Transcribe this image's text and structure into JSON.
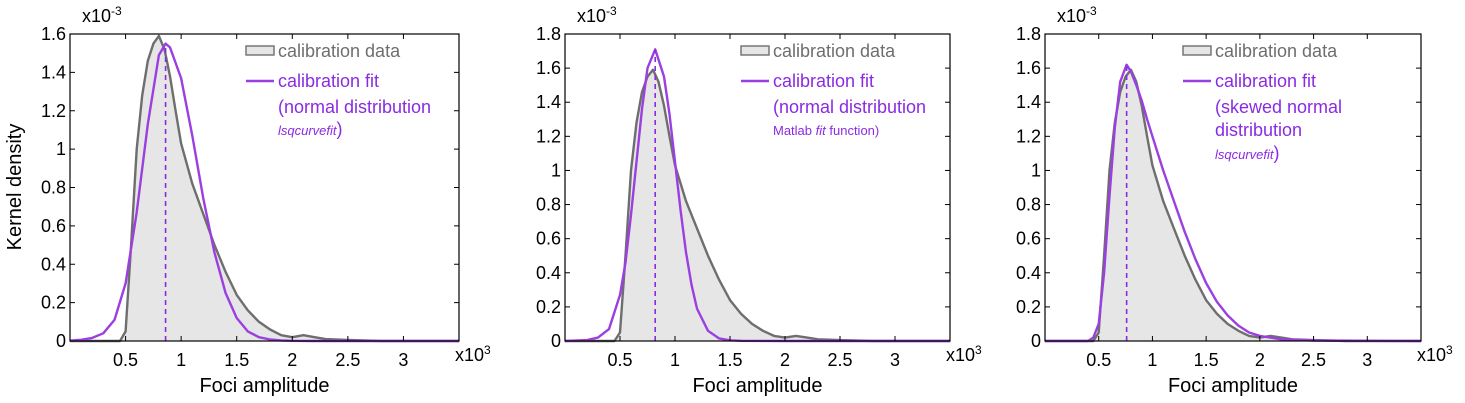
{
  "figure": {
    "ylabel": "Kernel density",
    "xlabel": "Foci amplitude",
    "y_exponent": "x10",
    "y_exponent_power": "-3",
    "x_exponent": "x10",
    "x_exponent_power": "3"
  },
  "colors": {
    "data_line": "#6e6e6e",
    "data_fill": "#e6e6e6",
    "fit_line": "#9b3fe0",
    "mode_line": "#8a2be2",
    "legend_fit_text": "#8a2be2",
    "legend_data_text": "#6e6e6e"
  },
  "chart_data": [
    {
      "type": "area",
      "panel": "a",
      "xlabel": "Foci amplitude",
      "ylabel": "Kernel density",
      "xlim": [
        0,
        3.5
      ],
      "ylim": [
        0,
        1.6
      ],
      "xticks": [
        0.5,
        1,
        1.5,
        2,
        2.5,
        3
      ],
      "xtick_labels": [
        "0.5",
        "1",
        "1.5",
        "2",
        "2.5",
        "3"
      ],
      "yticks": [
        0,
        0.2,
        0.4,
        0.6,
        0.8,
        1,
        1.2,
        1.4,
        1.6
      ],
      "ytick_labels": [
        "0",
        "0.2",
        "0.4",
        "0.6",
        "0.8",
        "1",
        "1.2",
        "1.4",
        "1.6"
      ],
      "mode_line_x": 0.86,
      "legend": [
        "calibration data",
        "calibration fit",
        "(normal distribution",
        "lsqcurvefit",
        ")"
      ],
      "series": [
        {
          "name": "calibration data",
          "x": [
            0,
            0.45,
            0.5,
            0.55,
            0.6,
            0.65,
            0.7,
            0.75,
            0.8,
            0.85,
            0.9,
            0.95,
            1.0,
            1.1,
            1.2,
            1.3,
            1.4,
            1.5,
            1.6,
            1.7,
            1.8,
            1.9,
            2.0,
            2.1,
            2.2,
            2.3,
            2.5,
            2.8,
            3.5
          ],
          "values": [
            0,
            0.0,
            0.05,
            0.5,
            1.0,
            1.28,
            1.46,
            1.55,
            1.59,
            1.52,
            1.38,
            1.2,
            1.03,
            0.82,
            0.66,
            0.5,
            0.36,
            0.24,
            0.16,
            0.1,
            0.06,
            0.03,
            0.02,
            0.03,
            0.02,
            0.01,
            0.005,
            0.0,
            0.0
          ]
        },
        {
          "name": "calibration fit",
          "x": [
            0,
            0.1,
            0.2,
            0.3,
            0.4,
            0.5,
            0.6,
            0.7,
            0.8,
            0.86,
            0.9,
            1.0,
            1.1,
            1.2,
            1.3,
            1.4,
            1.5,
            1.6,
            1.7,
            1.8,
            1.9,
            2.0,
            2.2,
            2.5,
            3.5
          ],
          "values": [
            0.002,
            0.006,
            0.016,
            0.04,
            0.11,
            0.3,
            0.67,
            1.13,
            1.49,
            1.55,
            1.53,
            1.37,
            1.07,
            0.74,
            0.46,
            0.25,
            0.12,
            0.05,
            0.02,
            0.008,
            0.003,
            0.001,
            0.0,
            0.0,
            0.0
          ]
        }
      ]
    },
    {
      "type": "area",
      "panel": "b",
      "xlabel": "Foci amplitude",
      "ylabel": "",
      "xlim": [
        0,
        3.5
      ],
      "ylim": [
        0,
        1.8
      ],
      "xticks": [
        0.5,
        1,
        1.5,
        2,
        2.5,
        3
      ],
      "xtick_labels": [
        "0.5",
        "1",
        "1.5",
        "2",
        "2.5",
        "3"
      ],
      "yticks": [
        0,
        0.2,
        0.4,
        0.6,
        0.8,
        1,
        1.2,
        1.4,
        1.6,
        1.8
      ],
      "ytick_labels": [
        "0",
        "0.2",
        "0.4",
        "0.6",
        "0.8",
        "1",
        "1.2",
        "1.4",
        "1.6",
        "1.8"
      ],
      "mode_line_x": 0.82,
      "legend": [
        "calibration data",
        "calibration fit",
        "(normal distribution",
        "Matlab ",
        "fit",
        " function)"
      ],
      "series": [
        {
          "name": "calibration data",
          "x": [
            0,
            0.45,
            0.5,
            0.55,
            0.6,
            0.65,
            0.7,
            0.75,
            0.8,
            0.85,
            0.9,
            0.95,
            1.0,
            1.1,
            1.2,
            1.3,
            1.4,
            1.5,
            1.6,
            1.7,
            1.8,
            1.9,
            2.0,
            2.1,
            2.2,
            2.3,
            2.5,
            2.8,
            3.5
          ],
          "values": [
            0,
            0.0,
            0.05,
            0.5,
            1.0,
            1.28,
            1.46,
            1.55,
            1.59,
            1.52,
            1.38,
            1.2,
            1.03,
            0.82,
            0.66,
            0.5,
            0.36,
            0.24,
            0.16,
            0.1,
            0.06,
            0.03,
            0.02,
            0.03,
            0.02,
            0.01,
            0.005,
            0.0,
            0.0
          ]
        },
        {
          "name": "calibration fit",
          "x": [
            0,
            0.2,
            0.3,
            0.4,
            0.5,
            0.55,
            0.6,
            0.65,
            0.7,
            0.75,
            0.82,
            0.9,
            0.95,
            1.0,
            1.05,
            1.1,
            1.15,
            1.2,
            1.3,
            1.4,
            1.5,
            1.6,
            2.0,
            3.5
          ],
          "values": [
            0.0,
            0.005,
            0.02,
            0.07,
            0.27,
            0.46,
            0.74,
            1.05,
            1.36,
            1.6,
            1.71,
            1.55,
            1.33,
            1.05,
            0.77,
            0.52,
            0.33,
            0.19,
            0.06,
            0.015,
            0.004,
            0.001,
            0.0,
            0.0
          ]
        }
      ]
    },
    {
      "type": "area",
      "panel": "c",
      "xlabel": "Foci amplitude",
      "ylabel": "",
      "xlim": [
        0,
        3.5
      ],
      "ylim": [
        0,
        1.8
      ],
      "xticks": [
        0.5,
        1,
        1.5,
        2,
        2.5,
        3
      ],
      "xtick_labels": [
        "0.5",
        "1",
        "1.5",
        "2",
        "2.5",
        "3"
      ],
      "yticks": [
        0,
        0.2,
        0.4,
        0.6,
        0.8,
        1,
        1.2,
        1.4,
        1.6,
        1.8
      ],
      "ytick_labels": [
        "0",
        "0.2",
        "0.4",
        "0.6",
        "0.8",
        "1",
        "1.2",
        "1.4",
        "1.6",
        "1.8"
      ],
      "mode_line_x": 0.76,
      "legend": [
        "calibration data",
        "calibration fit",
        "(skewed normal",
        "distribution",
        "lsqcurvefit",
        ")"
      ],
      "series": [
        {
          "name": "calibration data",
          "x": [
            0,
            0.45,
            0.5,
            0.55,
            0.6,
            0.65,
            0.7,
            0.75,
            0.8,
            0.85,
            0.9,
            0.95,
            1.0,
            1.1,
            1.2,
            1.3,
            1.4,
            1.5,
            1.6,
            1.7,
            1.8,
            1.9,
            2.0,
            2.1,
            2.2,
            2.3,
            2.5,
            2.8,
            3.5
          ],
          "values": [
            0,
            0.0,
            0.05,
            0.5,
            1.0,
            1.28,
            1.46,
            1.55,
            1.59,
            1.52,
            1.38,
            1.2,
            1.03,
            0.82,
            0.66,
            0.5,
            0.36,
            0.24,
            0.16,
            0.1,
            0.06,
            0.03,
            0.02,
            0.03,
            0.02,
            0.01,
            0.005,
            0.0,
            0.0
          ]
        },
        {
          "name": "calibration fit",
          "x": [
            0,
            0.4,
            0.45,
            0.5,
            0.55,
            0.6,
            0.65,
            0.7,
            0.76,
            0.8,
            0.85,
            0.9,
            0.95,
            1.0,
            1.1,
            1.2,
            1.3,
            1.4,
            1.5,
            1.6,
            1.7,
            1.8,
            1.9,
            2.0,
            2.2,
            2.5,
            3.5
          ],
          "values": [
            0.0,
            0.0,
            0.02,
            0.1,
            0.4,
            0.85,
            1.25,
            1.52,
            1.62,
            1.58,
            1.5,
            1.41,
            1.3,
            1.2,
            1.0,
            0.82,
            0.64,
            0.48,
            0.34,
            0.23,
            0.15,
            0.09,
            0.05,
            0.03,
            0.01,
            0.003,
            0.0
          ]
        }
      ]
    }
  ]
}
